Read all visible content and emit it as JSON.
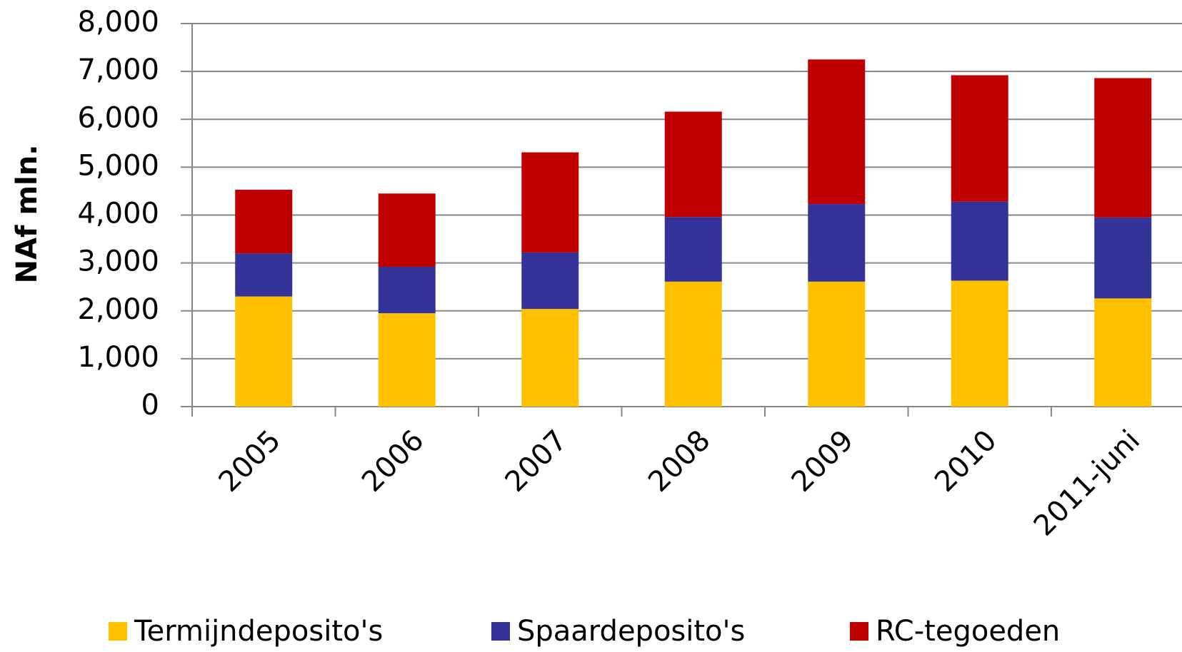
{
  "chart_data": {
    "type": "bar",
    "stacked": true,
    "y_label": "NAf mln.",
    "categories": [
      "2005",
      "2006",
      "2007",
      "2008",
      "2009",
      "2010",
      "2011-juni"
    ],
    "series": [
      {
        "name": "Termijndeposito's",
        "color": "#ffc000",
        "values": [
          2300,
          1950,
          2040,
          2610,
          2610,
          2630,
          2260
        ]
      },
      {
        "name": "Spaardeposito's",
        "color": "#333399",
        "values": [
          900,
          970,
          1180,
          1350,
          1620,
          1650,
          1690
        ]
      },
      {
        "name": "RC-tegoeden",
        "color": "#c00000",
        "values": [
          1330,
          1530,
          2090,
          2200,
          3020,
          2640,
          2910
        ]
      }
    ],
    "ylim": [
      0,
      8000
    ],
    "yticks": [
      0,
      {
        "value": 1000,
        "label": "1,000"
      },
      {
        "value": 2000,
        "label": "2,000"
      },
      {
        "value": 3000,
        "label": "3,000"
      },
      {
        "value": 4000,
        "label": "4,000"
      },
      {
        "value": 5000,
        "label": "5,000"
      },
      {
        "value": 6000,
        "label": "6,000"
      },
      {
        "value": 7000,
        "label": "7,000"
      },
      {
        "value": 8000,
        "label": "8,000"
      }
    ],
    "grid": true,
    "legend": "bottom"
  }
}
